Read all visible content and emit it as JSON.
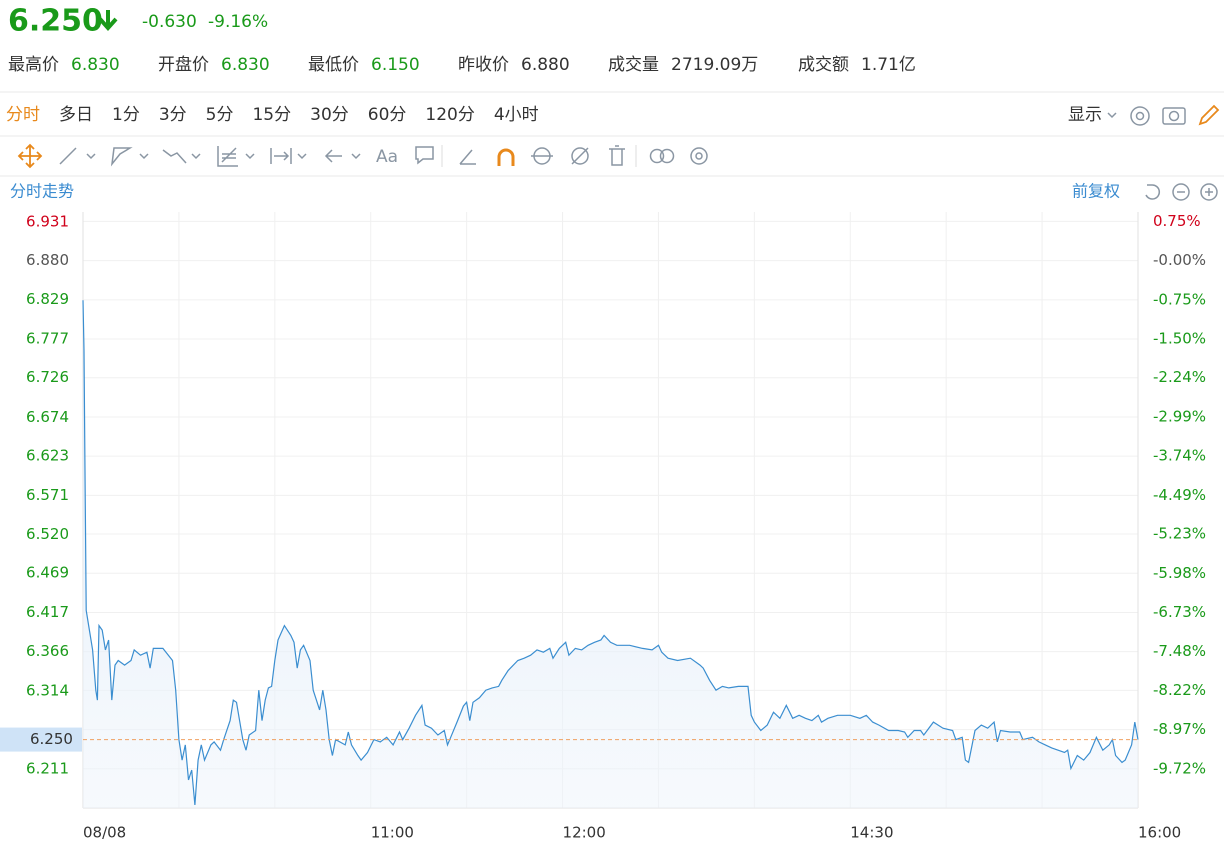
{
  "header": {
    "price": "6.250",
    "change": "-0.630",
    "change_pct": "-9.16%"
  },
  "stats": [
    {
      "label": "最高价",
      "value": "6.830",
      "color": "#1a9a1a"
    },
    {
      "label": "开盘价",
      "value": "6.830",
      "color": "#1a9a1a"
    },
    {
      "label": "最低价",
      "value": "6.150",
      "color": "#1a9a1a"
    },
    {
      "label": "昨收价",
      "value": "6.880",
      "color": "#333333"
    },
    {
      "label": "成交量",
      "value": "2719.09万",
      "color": "#333333"
    },
    {
      "label": "成交额",
      "value": "1.71亿",
      "color": "#333333"
    }
  ],
  "tabs": [
    "分时",
    "多日",
    "1分",
    "3分",
    "5分",
    "15分",
    "30分",
    "60分",
    "120分",
    "4小时"
  ],
  "active_tab": 0,
  "display_menu": "显示",
  "toolbar_text": "Aa",
  "chart_data": {
    "type": "line",
    "title": "分时走势",
    "adjust_label": "前复权",
    "color": "#3b8ed0",
    "grid": true,
    "x": [
      0,
      0.3,
      0.6,
      1,
      2,
      3,
      4,
      4.5,
      5,
      6,
      7,
      8,
      9,
      10,
      11,
      13,
      15,
      16,
      18,
      20,
      21,
      22,
      25,
      28,
      29,
      30,
      31,
      32,
      33,
      34,
      35,
      36,
      37,
      38,
      40,
      41,
      43,
      44,
      46,
      47,
      48,
      50,
      51,
      52,
      54,
      55,
      56,
      57,
      58,
      59,
      60,
      61,
      63,
      65,
      66,
      67,
      68,
      69,
      71,
      72,
      73,
      74,
      75,
      76,
      77,
      78,
      79,
      82,
      83,
      84,
      86,
      87,
      89,
      91,
      93,
      95,
      97,
      99,
      100,
      102,
      104,
      106,
      107,
      109,
      111,
      113,
      114,
      115,
      117,
      119,
      120,
      121,
      122,
      124,
      126,
      128,
      130,
      131,
      133,
      136,
      138,
      140,
      142,
      144,
      146,
      147,
      149,
      151,
      152,
      154,
      156,
      158,
      160,
      162,
      163,
      165,
      167,
      171,
      175,
      178,
      180,
      181,
      183,
      186,
      190,
      193,
      194,
      196,
      198,
      200,
      202,
      205,
      208,
      209,
      210,
      212,
      214,
      216,
      218,
      220,
      222,
      224,
      226,
      228,
      230,
      231,
      233,
      236,
      240,
      243,
      245,
      247,
      249,
      252,
      255,
      257,
      258,
      260,
      262,
      263,
      266,
      269,
      272,
      273,
      275,
      276,
      277,
      279,
      281,
      283,
      285,
      286,
      287,
      290,
      293,
      294,
      297,
      299,
      301,
      303,
      305,
      307,
      308,
      309,
      311,
      313,
      315,
      317,
      319,
      321,
      322,
      323,
      325,
      326,
      328,
      329,
      330
    ],
    "values": [
      6.828,
      6.762,
      6.618,
      6.42,
      6.394,
      6.368,
      6.315,
      6.302,
      6.4,
      6.394,
      6.368,
      6.381,
      6.302,
      6.348,
      6.354,
      6.348,
      6.354,
      6.368,
      6.361,
      6.365,
      6.344,
      6.37,
      6.37,
      6.354,
      6.315,
      6.25,
      6.223,
      6.243,
      6.197,
      6.21,
      6.164,
      6.223,
      6.243,
      6.223,
      6.243,
      6.247,
      6.236,
      6.25,
      6.275,
      6.302,
      6.299,
      6.25,
      6.236,
      6.256,
      6.262,
      6.315,
      6.275,
      6.302,
      6.318,
      6.32,
      6.354,
      6.381,
      6.4,
      6.387,
      6.378,
      6.344,
      6.368,
      6.374,
      6.354,
      6.315,
      6.302,
      6.289,
      6.315,
      6.289,
      6.25,
      6.229,
      6.25,
      6.243,
      6.26,
      6.243,
      6.229,
      6.223,
      6.233,
      6.25,
      6.247,
      6.253,
      6.243,
      6.26,
      6.25,
      6.265,
      6.282,
      6.295,
      6.269,
      6.265,
      6.256,
      6.262,
      6.243,
      6.253,
      6.273,
      6.294,
      6.299,
      6.275,
      6.299,
      6.305,
      6.315,
      6.318,
      6.32,
      6.328,
      6.341,
      6.354,
      6.357,
      6.361,
      6.368,
      6.365,
      6.37,
      6.357,
      6.37,
      6.378,
      6.361,
      6.37,
      6.368,
      6.374,
      6.378,
      6.381,
      6.387,
      6.378,
      6.374,
      6.374,
      6.37,
      6.368,
      6.374,
      6.365,
      6.357,
      6.354,
      6.357,
      6.348,
      6.344,
      6.328,
      6.315,
      6.32,
      6.318,
      6.32,
      6.32,
      6.282,
      6.273,
      6.262,
      6.269,
      6.286,
      6.278,
      6.295,
      6.278,
      6.282,
      6.278,
      6.275,
      6.282,
      6.273,
      6.278,
      6.282,
      6.282,
      6.278,
      6.282,
      6.273,
      6.269,
      6.262,
      6.262,
      6.26,
      6.253,
      6.262,
      6.262,
      6.256,
      6.273,
      6.265,
      6.262,
      6.25,
      6.253,
      6.223,
      6.22,
      6.262,
      6.269,
      6.265,
      6.273,
      6.247,
      6.262,
      6.26,
      6.26,
      6.25,
      6.253,
      6.247,
      6.243,
      6.239,
      6.236,
      6.233,
      6.236,
      6.212,
      6.229,
      6.223,
      6.233,
      6.253,
      6.236,
      6.243,
      6.25,
      6.229,
      6.22,
      6.223,
      6.243,
      6.273,
      6.25
    ],
    "xlim": [
      0,
      330
    ],
    "xticks": [
      {
        "value": 0,
        "label": "08/08"
      },
      {
        "value": 90,
        "label": "11:00"
      },
      {
        "value": 150,
        "label": "12:00"
      },
      {
        "value": 240,
        "label": "14:30"
      },
      {
        "value": 330,
        "label": "16:00"
      }
    ],
    "xgrid": [
      30,
      60,
      90,
      120,
      150,
      180,
      210,
      240,
      270,
      300
    ],
    "ylim": [
      6.16,
      6.944
    ],
    "yticks": [
      6.931,
      {
        "value": 6.88,
        "label": "6.880"
      },
      6.829,
      6.777,
      6.726,
      6.674,
      6.623,
      6.571,
      {
        "value": 6.52,
        "label": "6.520"
      },
      6.469,
      6.417,
      6.366,
      6.314,
      6.211
    ],
    "y2lim": [
      -10.47,
      0.93
    ],
    "y2ticks": [
      {
        "value": 0.75,
        "label": "0.75%"
      },
      {
        "value": 0,
        "label": "-0.00%"
      },
      {
        "value": -0.75,
        "label": "-0.75%"
      },
      {
        "value": -1.5,
        "label": "-1.50%"
      },
      {
        "value": -2.24,
        "label": "-2.24%"
      },
      {
        "value": -2.99,
        "label": "-2.99%"
      },
      {
        "value": -3.74,
        "label": "-3.74%"
      },
      {
        "value": -4.49,
        "label": "-4.49%"
      },
      {
        "value": -5.23,
        "label": "-5.23%"
      },
      {
        "value": -5.98,
        "label": "-5.98%"
      },
      {
        "value": -6.73,
        "label": "-6.73%"
      },
      {
        "value": -7.48,
        "label": "-7.48%"
      },
      {
        "value": -8.22,
        "label": "-8.22%"
      },
      {
        "value": -8.97,
        "label": "-8.97%"
      },
      {
        "value": -9.72,
        "label": "-9.72%"
      }
    ],
    "current_price": {
      "value": 6.25,
      "label": "6.250"
    }
  }
}
